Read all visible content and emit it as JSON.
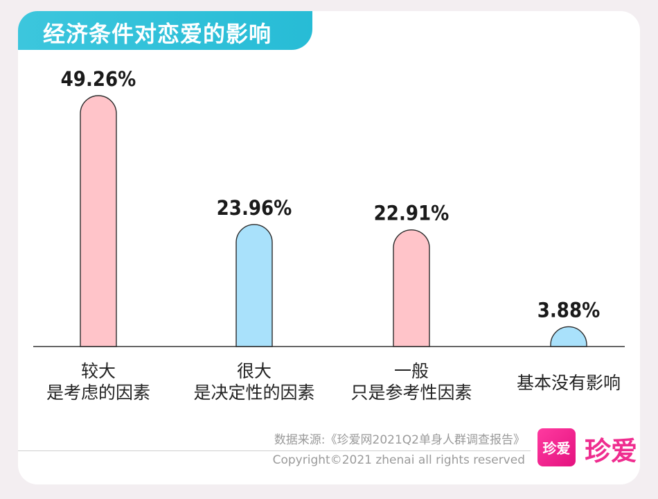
{
  "title": "经济条件对恋爱的影响",
  "chart_data": {
    "type": "bar",
    "title": "经济条件对恋爱的影响",
    "categories": [
      [
        "较大",
        "是考虑的因素"
      ],
      [
        "很大",
        "是决定性的因素"
      ],
      [
        "一般",
        "只是参考性因素"
      ],
      [
        "基本没有影响"
      ]
    ],
    "values": [
      49.26,
      23.96,
      22.91,
      3.88
    ],
    "value_labels": [
      "49.26%",
      "23.96%",
      "22.91%",
      "3.88%"
    ],
    "bar_colors": [
      "#ffc4c9",
      "#a9e1fb",
      "#ffc4c9",
      "#a9e1fb"
    ],
    "ylim": [
      0,
      50
    ],
    "grid": false,
    "xlabel": "",
    "ylabel": ""
  },
  "footer": {
    "source": "数据来源:《珍爱网2021Q2单身人群调查报告》",
    "copyright": "Copyright©2021  zhenai  all rights reserved",
    "logo_mark": "珍爱",
    "logo_text": "珍爱"
  },
  "colors": {
    "title_banner": "#2ec0d8",
    "accent_pink": "#ef2d8f"
  }
}
